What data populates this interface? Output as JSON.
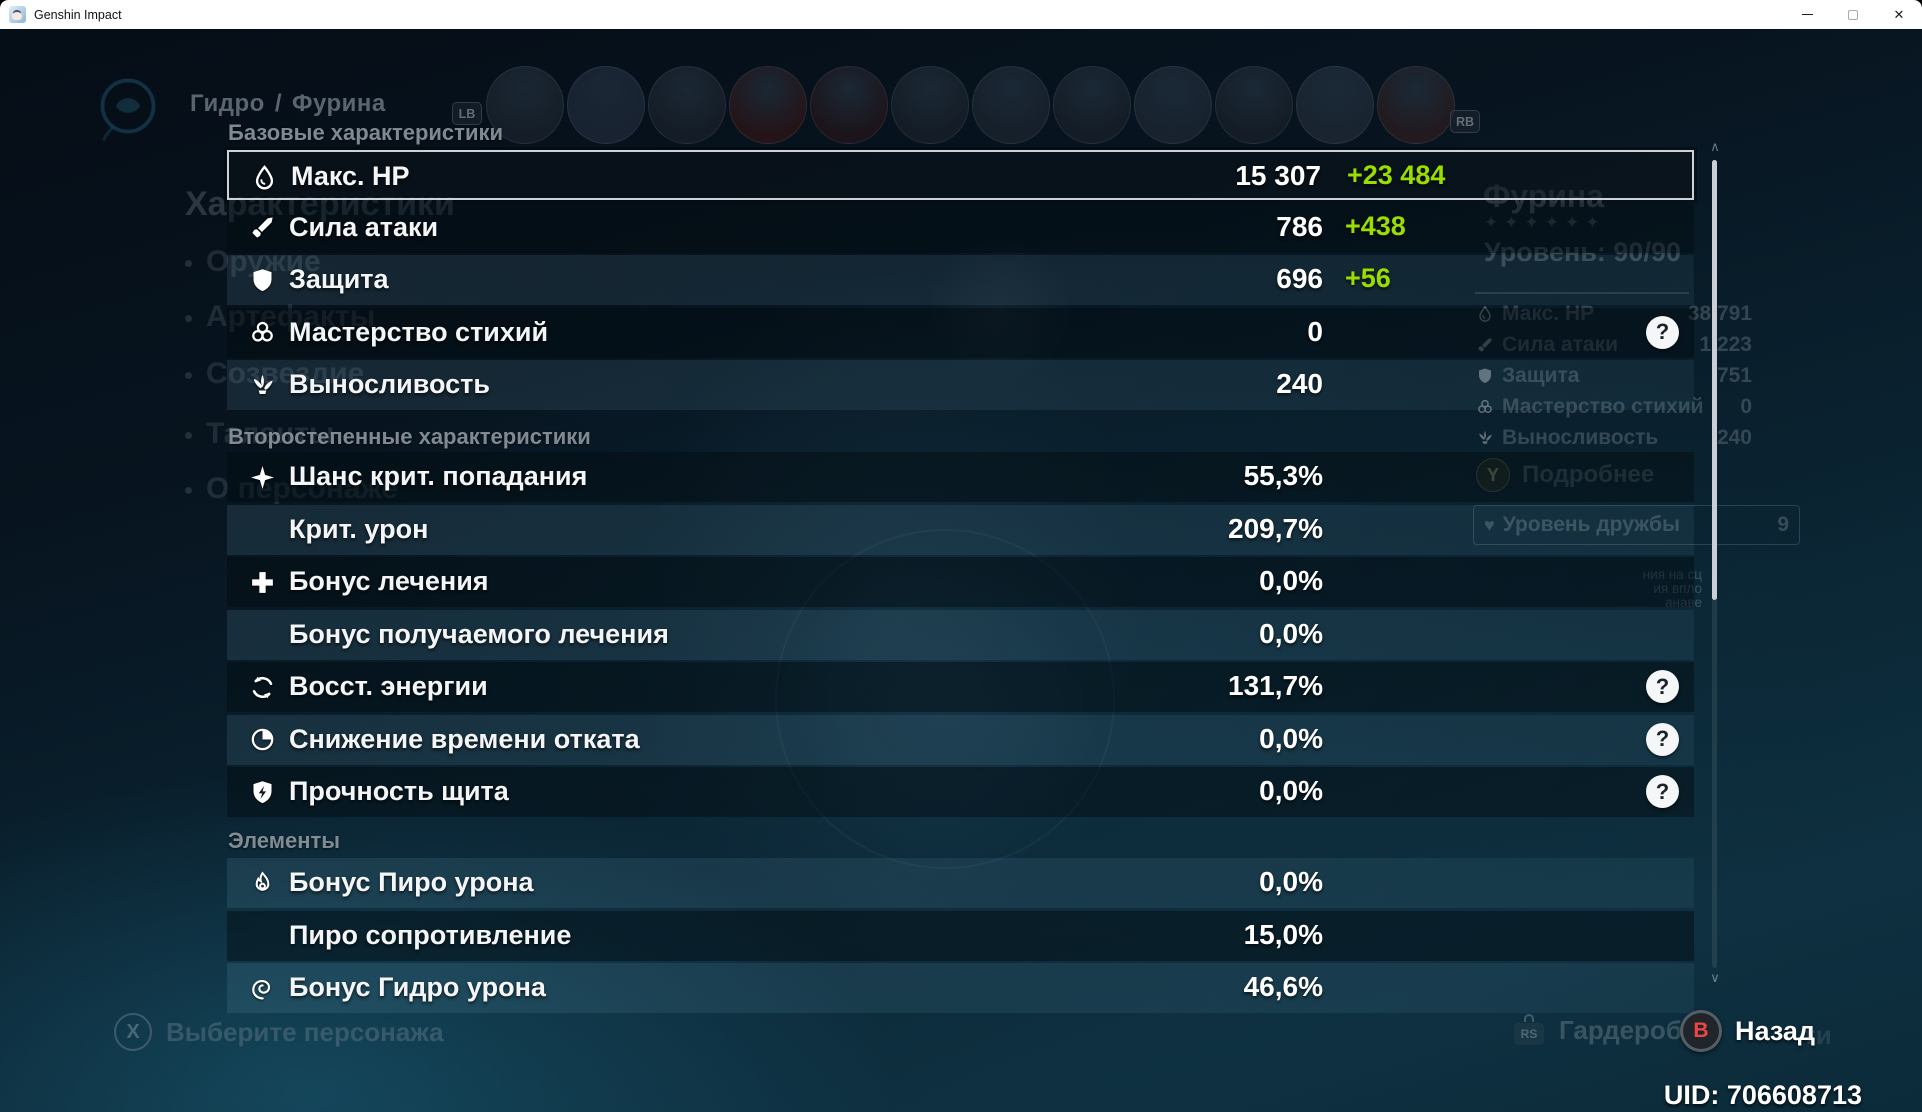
{
  "window": {
    "title": "Genshin Impact",
    "controls": {
      "minimize": "minimize",
      "maximize": "maximize",
      "close": "✕"
    }
  },
  "breadcrumb": {
    "element": "Гидро",
    "separator": "/",
    "character": "Фурина"
  },
  "top_nav": {
    "lb_label": "LB",
    "rb_label": "RB",
    "avatar_count": 12
  },
  "sidebar": {
    "items": [
      {
        "label": "Характеристики",
        "selected": true
      },
      {
        "label": "Оружие"
      },
      {
        "label": "Артефакты"
      },
      {
        "label": "Созвездие"
      },
      {
        "label": "Таланты"
      },
      {
        "label": "О персонаже"
      }
    ]
  },
  "stats_panel": {
    "sections": [
      {
        "header": "Базовые характеристики",
        "rows": [
          {
            "icon": "hp",
            "label": "Макс. HP",
            "value": "15 307",
            "bonus": "+23 484",
            "selected": true
          },
          {
            "icon": "atk",
            "label": "Сила атаки",
            "value": "786",
            "bonus": "+438"
          },
          {
            "icon": "def",
            "label": "Защита",
            "value": "696",
            "bonus": "+56"
          },
          {
            "icon": "elemental-mastery",
            "label": "Мастерство стихий",
            "value": "0",
            "help": true
          },
          {
            "icon": "stamina",
            "label": "Выносливость",
            "value": "240"
          }
        ]
      },
      {
        "header": "Второстепенные характеристики",
        "rows": [
          {
            "icon": "crit-rate",
            "label": "Шанс крит. попадания",
            "value": "55,3%"
          },
          {
            "icon": null,
            "label": "Крит. урон",
            "value": "209,7%"
          },
          {
            "icon": "healing-bonus",
            "label": "Бонус лечения",
            "value": "0,0%"
          },
          {
            "icon": null,
            "label": "Бонус получаемого лечения",
            "value": "0,0%"
          },
          {
            "icon": "energy-recharge",
            "label": "Восст. энергии",
            "value": "131,7%",
            "help": true
          },
          {
            "icon": "cooldown-reduction",
            "label": "Снижение времени отката",
            "value": "0,0%",
            "help": true
          },
          {
            "icon": "shield-strength",
            "label": "Прочность щита",
            "value": "0,0%",
            "help": true
          }
        ]
      },
      {
        "header": "Элементы",
        "rows": [
          {
            "icon": "pyro",
            "label": "Бонус Пиро урона",
            "value": "0,0%"
          },
          {
            "icon": null,
            "label": "Пиро сопротивление",
            "value": "15,0%"
          },
          {
            "icon": "hydro",
            "label": "Бонус Гидро урона",
            "value": "46,6%"
          }
        ]
      }
    ]
  },
  "right_panel": {
    "name": "Фурина",
    "stars": "✦✦✦✦✦✦",
    "level": "Уровень: 90/90",
    "stats": [
      {
        "icon": "hp",
        "label": "Макс. HP",
        "value": "38 791"
      },
      {
        "icon": "atk",
        "label": "Сила атаки",
        "value": "1 223"
      },
      {
        "icon": "def",
        "label": "Защита",
        "value": "751"
      },
      {
        "icon": "elemental-mastery",
        "label": "Мастерство стихий",
        "value": "0"
      },
      {
        "icon": "stamina",
        "label": "Выносливость",
        "value": "240"
      }
    ],
    "details_hint": {
      "button": "Y",
      "label": "Подробнее"
    },
    "friendship": {
      "label": "Уровень дружбы",
      "value": "9"
    },
    "description_fragments": [
      "ния на сц",
      "ия впло",
      "анаве"
    ]
  },
  "bottom_bar": {
    "select_hint": {
      "button": "X",
      "label": "Выберите персонажа"
    },
    "wardrobe": {
      "icon_label": "RS",
      "label": "Гардероб"
    },
    "back_hint": {
      "button": "B",
      "label": "Назад"
    },
    "behind_fragment": "ти",
    "uid": "UID: 706608713"
  },
  "colors": {
    "bonus_green": "#9ade00",
    "back_red": "#ef4444"
  }
}
